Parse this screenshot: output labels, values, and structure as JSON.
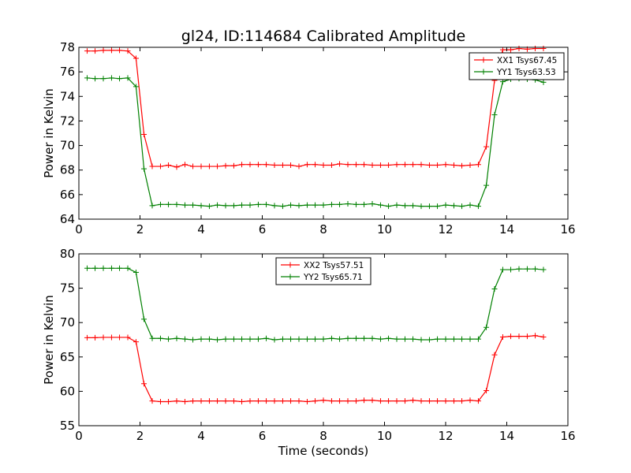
{
  "title": "gl24, ID:114684 Calibrated Amplitude",
  "colors": {
    "red": "#ff0000",
    "green": "#008000"
  },
  "chart_data": [
    {
      "type": "line",
      "xlabel": "",
      "ylabel": "Power in Kelvin",
      "xlim": [
        0,
        16
      ],
      "ylim": [
        64,
        78
      ],
      "xticks": [
        0,
        2,
        4,
        6,
        8,
        10,
        12,
        14,
        16
      ],
      "yticks": [
        64,
        66,
        68,
        70,
        72,
        74,
        76,
        78
      ],
      "legend_position": "top-right",
      "x": [
        0.27,
        0.53,
        0.8,
        1.07,
        1.33,
        1.6,
        1.87,
        2.13,
        2.4,
        2.67,
        2.93,
        3.2,
        3.47,
        3.73,
        4.0,
        4.27,
        4.53,
        4.8,
        5.07,
        5.33,
        5.6,
        5.87,
        6.13,
        6.4,
        6.67,
        6.93,
        7.2,
        7.47,
        7.73,
        8.0,
        8.27,
        8.53,
        8.8,
        9.07,
        9.33,
        9.6,
        9.87,
        10.13,
        10.4,
        10.67,
        10.93,
        11.2,
        11.47,
        11.73,
        12.0,
        12.27,
        12.53,
        12.8,
        13.07,
        13.33,
        13.6,
        13.87,
        14.13,
        14.4,
        14.67,
        14.93,
        15.2
      ],
      "series": [
        {
          "name": "XX1 Tsys67.45",
          "color": "#ff0000",
          "values": [
            77.7,
            77.7,
            77.75,
            77.75,
            77.75,
            77.7,
            77.1,
            70.9,
            68.3,
            68.3,
            68.4,
            68.25,
            68.45,
            68.3,
            68.3,
            68.3,
            68.3,
            68.35,
            68.35,
            68.45,
            68.45,
            68.45,
            68.45,
            68.4,
            68.4,
            68.4,
            68.3,
            68.45,
            68.45,
            68.4,
            68.4,
            68.5,
            68.45,
            68.45,
            68.45,
            68.4,
            68.4,
            68.4,
            68.45,
            68.45,
            68.45,
            68.45,
            68.4,
            68.4,
            68.45,
            68.4,
            68.35,
            68.4,
            68.45,
            69.9,
            75.3,
            77.8,
            77.8,
            77.9,
            77.85,
            77.9,
            77.9
          ]
        },
        {
          "name": "YY1 Tsys63.53",
          "color": "#008000",
          "values": [
            75.5,
            75.45,
            75.45,
            75.5,
            75.45,
            75.5,
            74.8,
            68.1,
            65.1,
            65.2,
            65.2,
            65.2,
            65.15,
            65.15,
            65.1,
            65.05,
            65.15,
            65.1,
            65.1,
            65.15,
            65.15,
            65.2,
            65.2,
            65.1,
            65.05,
            65.15,
            65.1,
            65.15,
            65.15,
            65.15,
            65.2,
            65.2,
            65.25,
            65.2,
            65.2,
            65.25,
            65.15,
            65.05,
            65.15,
            65.1,
            65.1,
            65.05,
            65.05,
            65.05,
            65.15,
            65.1,
            65.05,
            65.15,
            65.05,
            66.75,
            72.5,
            75.2,
            75.4,
            75.45,
            75.4,
            75.35,
            75.15
          ]
        }
      ]
    },
    {
      "type": "line",
      "xlabel": "Time (seconds)",
      "ylabel": "Power in Kelvin",
      "xlim": [
        0,
        16
      ],
      "ylim": [
        55,
        80
      ],
      "xticks": [
        0,
        2,
        4,
        6,
        8,
        10,
        12,
        14,
        16
      ],
      "yticks": [
        55,
        60,
        65,
        70,
        75,
        80
      ],
      "legend_position": "top-center",
      "x": [
        0.27,
        0.53,
        0.8,
        1.07,
        1.33,
        1.6,
        1.87,
        2.13,
        2.4,
        2.67,
        2.93,
        3.2,
        3.47,
        3.73,
        4.0,
        4.27,
        4.53,
        4.8,
        5.07,
        5.33,
        5.6,
        5.87,
        6.13,
        6.4,
        6.67,
        6.93,
        7.2,
        7.47,
        7.73,
        8.0,
        8.27,
        8.53,
        8.8,
        9.07,
        9.33,
        9.6,
        9.87,
        10.13,
        10.4,
        10.67,
        10.93,
        11.2,
        11.47,
        11.73,
        12.0,
        12.27,
        12.53,
        12.8,
        13.07,
        13.33,
        13.6,
        13.87,
        14.13,
        14.4,
        14.67,
        14.93,
        15.2
      ],
      "series": [
        {
          "name": "XX2 Tsys57.51",
          "color": "#ff0000",
          "values": [
            67.8,
            67.8,
            67.85,
            67.85,
            67.85,
            67.85,
            67.2,
            61.1,
            58.6,
            58.5,
            58.5,
            58.6,
            58.5,
            58.6,
            58.6,
            58.6,
            58.6,
            58.6,
            58.6,
            58.5,
            58.6,
            58.6,
            58.6,
            58.6,
            58.6,
            58.6,
            58.6,
            58.5,
            58.6,
            58.7,
            58.6,
            58.6,
            58.6,
            58.6,
            58.7,
            58.7,
            58.6,
            58.6,
            58.6,
            58.6,
            58.7,
            58.6,
            58.6,
            58.6,
            58.6,
            58.6,
            58.6,
            58.7,
            58.6,
            60.1,
            65.3,
            67.9,
            68.0,
            68.0,
            68.0,
            68.1,
            67.9
          ]
        },
        {
          "name": "YY2 Tsys65.71",
          "color": "#008000",
          "values": [
            77.9,
            77.9,
            77.9,
            77.9,
            77.9,
            77.9,
            77.3,
            70.5,
            67.7,
            67.7,
            67.6,
            67.7,
            67.6,
            67.5,
            67.6,
            67.6,
            67.5,
            67.6,
            67.6,
            67.6,
            67.6,
            67.6,
            67.7,
            67.5,
            67.6,
            67.6,
            67.6,
            67.6,
            67.6,
            67.6,
            67.7,
            67.6,
            67.7,
            67.7,
            67.7,
            67.7,
            67.6,
            67.7,
            67.6,
            67.6,
            67.6,
            67.5,
            67.5,
            67.6,
            67.6,
            67.6,
            67.6,
            67.6,
            67.6,
            69.3,
            74.9,
            77.7,
            77.7,
            77.8,
            77.8,
            77.8,
            77.7
          ]
        }
      ]
    }
  ]
}
